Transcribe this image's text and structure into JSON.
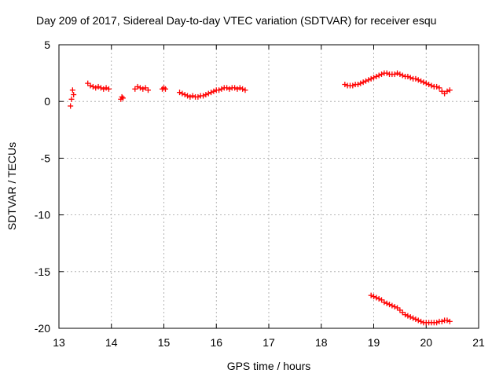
{
  "chart_data": {
    "type": "scatter",
    "title": "Day 209 of 2017, Sidereal Day-to-day VTEC variation (SDTVAR) for receiver esqu",
    "xlabel": "GPS time / hours",
    "ylabel": "SDTVAR / TECUs",
    "xlim": [
      13,
      21
    ],
    "ylim": [
      -20,
      5
    ],
    "xticks": [
      13,
      14,
      15,
      16,
      17,
      18,
      19,
      20,
      21
    ],
    "yticks": [
      -20,
      -15,
      -10,
      -5,
      0,
      5
    ],
    "xtick_labels": [
      "13",
      "14",
      "15",
      "16",
      "17",
      "18",
      "19",
      "20",
      "21"
    ],
    "ytick_labels": [
      "-20",
      "-15",
      "-10",
      "-5",
      "0",
      "5"
    ],
    "grid": true,
    "marker": "plus",
    "color": "#ff0000",
    "series": [
      {
        "name": "SDTVAR",
        "segments": [
          {
            "x": [
              13.22,
              13.24,
              13.26,
              13.28
            ],
            "y": [
              -0.4,
              0.2,
              1.0,
              0.6
            ]
          },
          {
            "x": [
              13.55,
              13.6,
              13.65,
              13.7,
              13.75,
              13.8,
              13.85,
              13.9,
              13.95
            ],
            "y": [
              1.6,
              1.4,
              1.3,
              1.2,
              1.3,
              1.2,
              1.1,
              1.2,
              1.1
            ]
          },
          {
            "x": [
              14.18,
              14.2,
              14.22
            ],
            "y": [
              0.2,
              0.4,
              0.3
            ]
          },
          {
            "x": [
              14.45,
              14.5,
              14.55,
              14.6,
              14.65,
              14.7
            ],
            "y": [
              1.1,
              1.3,
              1.2,
              1.1,
              1.2,
              1.0
            ]
          },
          {
            "x": [
              14.97,
              15.0,
              15.03
            ],
            "y": [
              1.1,
              1.2,
              1.1
            ]
          },
          {
            "x": [
              15.3,
              15.35,
              15.4,
              15.45,
              15.5,
              15.55,
              15.6,
              15.65,
              15.7,
              15.75,
              15.8,
              15.85,
              15.9,
              15.95,
              16.0,
              16.05,
              16.1,
              16.15,
              16.2,
              16.25,
              16.3,
              16.35,
              16.4,
              16.45,
              16.5,
              16.55
            ],
            "y": [
              0.8,
              0.7,
              0.6,
              0.5,
              0.4,
              0.5,
              0.4,
              0.4,
              0.5,
              0.5,
              0.6,
              0.7,
              0.8,
              0.9,
              1.0,
              1.0,
              1.1,
              1.2,
              1.2,
              1.1,
              1.2,
              1.2,
              1.1,
              1.2,
              1.1,
              1.0
            ]
          },
          {
            "x": [
              18.45,
              18.5,
              18.55,
              18.6,
              18.65,
              18.7,
              18.75,
              18.8,
              18.85,
              18.9,
              18.95,
              19.0,
              19.05,
              19.1,
              19.15,
              19.2,
              19.25,
              19.3,
              19.35,
              19.4,
              19.45,
              19.5,
              19.55,
              19.6,
              19.65,
              19.7,
              19.75,
              19.8,
              19.85,
              19.9,
              19.95,
              20.0,
              20.05,
              20.1,
              20.15,
              20.2,
              20.25,
              20.3,
              20.35,
              20.4,
              20.45
            ],
            "y": [
              1.5,
              1.4,
              1.4,
              1.4,
              1.5,
              1.5,
              1.6,
              1.7,
              1.8,
              1.9,
              2.0,
              2.1,
              2.2,
              2.3,
              2.4,
              2.5,
              2.5,
              2.4,
              2.4,
              2.4,
              2.5,
              2.4,
              2.3,
              2.2,
              2.2,
              2.1,
              2.0,
              2.0,
              1.9,
              1.8,
              1.7,
              1.6,
              1.5,
              1.4,
              1.3,
              1.3,
              1.2,
              0.9,
              0.7,
              0.9,
              1.0
            ]
          },
          {
            "x": [
              18.95,
              19.0,
              19.05,
              19.1,
              19.15,
              19.2,
              19.25,
              19.3,
              19.35,
              19.4,
              19.45,
              19.5,
              19.55,
              19.6,
              19.65,
              19.7,
              19.75,
              19.8,
              19.85,
              19.9,
              19.95,
              20.0,
              20.05,
              20.1,
              20.15,
              20.2,
              20.25,
              20.3,
              20.35,
              20.4,
              20.45
            ],
            "y": [
              -17.1,
              -17.2,
              -17.3,
              -17.4,
              -17.5,
              -17.7,
              -17.8,
              -17.9,
              -18.0,
              -18.1,
              -18.2,
              -18.4,
              -18.6,
              -18.8,
              -18.9,
              -19.0,
              -19.1,
              -19.2,
              -19.3,
              -19.4,
              -19.5,
              -19.5,
              -19.5,
              -19.5,
              -19.5,
              -19.5,
              -19.4,
              -19.4,
              -19.3,
              -19.3,
              -19.4
            ]
          }
        ]
      }
    ]
  }
}
